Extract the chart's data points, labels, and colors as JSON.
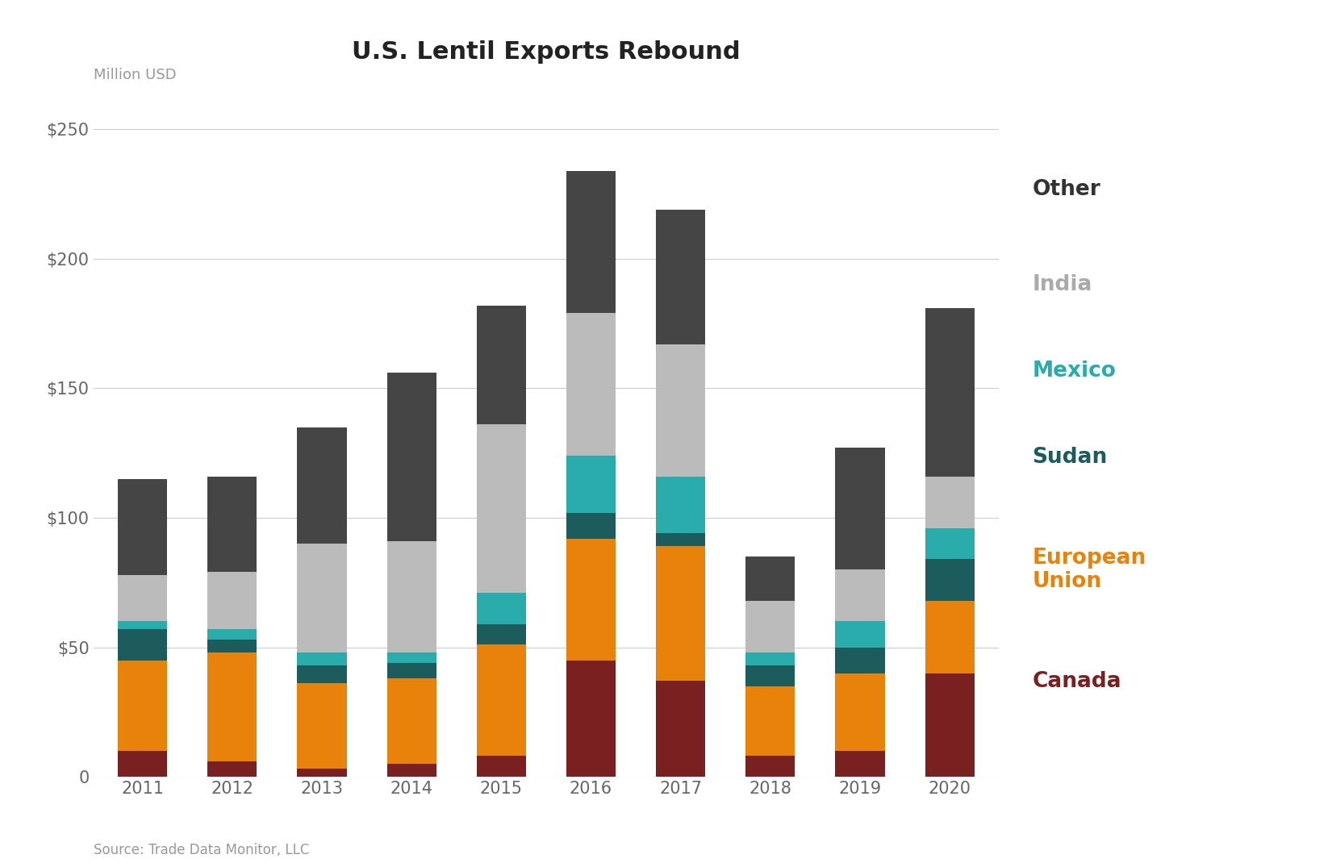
{
  "title": "U.S. Lentil Exports Rebound",
  "ylabel": "Million USD",
  "source": "Source: Trade Data Monitor, LLC",
  "years": [
    2011,
    2012,
    2013,
    2014,
    2015,
    2016,
    2017,
    2018,
    2019,
    2020
  ],
  "segments": {
    "Canada": {
      "color": "#7B2020",
      "values": [
        10,
        6,
        3,
        5,
        8,
        45,
        37,
        8,
        10,
        40
      ]
    },
    "European Union": {
      "color": "#E8820A",
      "values": [
        35,
        42,
        33,
        33,
        43,
        47,
        52,
        27,
        30,
        28
      ]
    },
    "Sudan": {
      "color": "#1D5C5C",
      "values": [
        12,
        5,
        7,
        6,
        8,
        10,
        5,
        8,
        10,
        16
      ]
    },
    "Mexico": {
      "color": "#2AACAC",
      "values": [
        3,
        4,
        5,
        4,
        12,
        22,
        22,
        5,
        10,
        12
      ]
    },
    "India": {
      "color": "#BBBBBB",
      "values": [
        18,
        22,
        42,
        43,
        65,
        55,
        51,
        20,
        20,
        20
      ]
    },
    "Other": {
      "color": "#454545",
      "values": [
        37,
        37,
        45,
        65,
        46,
        55,
        52,
        17,
        47,
        65
      ]
    }
  },
  "segment_order": [
    "Canada",
    "European Union",
    "Sudan",
    "Mexico",
    "India",
    "Other"
  ],
  "ylim": [
    0,
    260
  ],
  "yticks": [
    0,
    50,
    100,
    150,
    200,
    250
  ],
  "ytick_labels": [
    "0",
    "$50",
    "$100",
    "$150",
    "$200",
    "$250"
  ],
  "background_color": "#FFFFFF",
  "bar_width": 0.55,
  "grid_color": "#CCCCCC",
  "legend_items": [
    {
      "label": "Other",
      "color": "#454545",
      "text_color": "#333333"
    },
    {
      "label": "India",
      "color": "#BBBBBB",
      "text_color": "#AAAAAA"
    },
    {
      "label": "Mexico",
      "color": "#2AACAC",
      "text_color": "#2AACAC"
    },
    {
      "label": "Sudan",
      "color": "#1D5C5C",
      "text_color": "#1D5C5C"
    },
    {
      "label": "European\nUnion",
      "color": "#E8820A",
      "text_color": "#E8820A"
    },
    {
      "label": "Canada",
      "color": "#7B2020",
      "text_color": "#7B2020"
    }
  ]
}
